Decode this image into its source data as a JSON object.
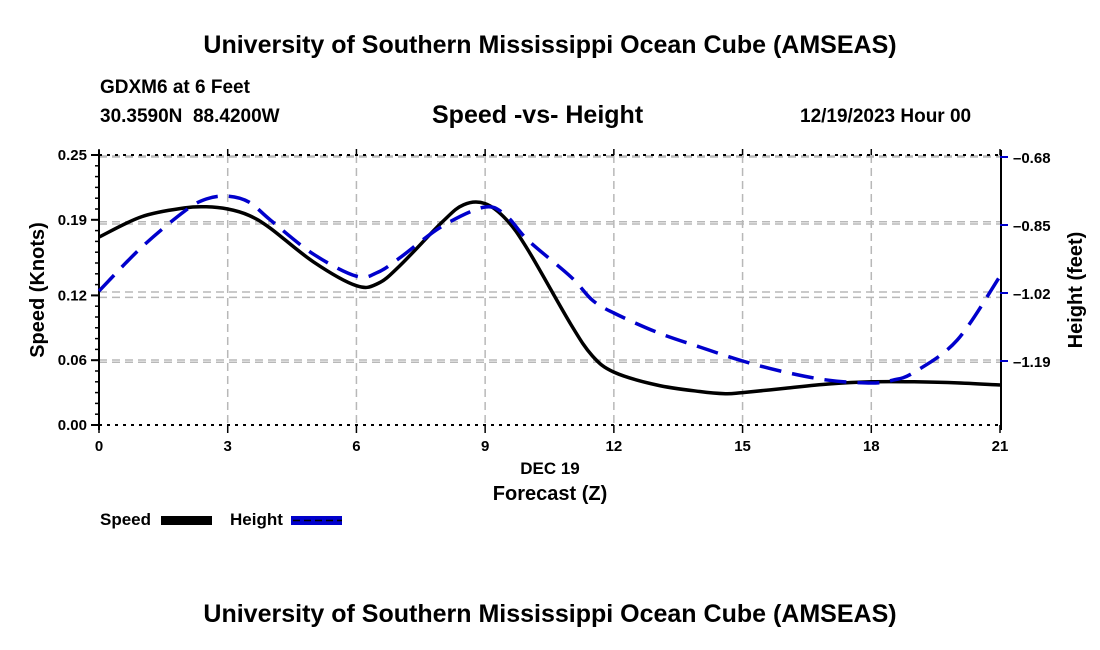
{
  "header": {
    "title": "University of Southern Mississippi Ocean Cube (AMSEAS)",
    "station": "GDXM6 at 6 Feet",
    "coords": "30.3590N  88.4200W",
    "subtitle": "Speed -vs- Height",
    "datetime": "12/19/2023 Hour 00"
  },
  "footer": {
    "title": "University of Southern Mississippi Ocean Cube (AMSEAS)"
  },
  "legend": {
    "items": [
      {
        "label": "Speed",
        "color": "#000000",
        "style": "solid"
      },
      {
        "label": "Height",
        "color": "#0000cc",
        "style": "dashed"
      }
    ],
    "placement": "bottom-left"
  },
  "chart_data": {
    "type": "line",
    "title": "Speed -vs- Height",
    "xlabel": "Forecast (Z)",
    "xlabel_date": "DEC 19",
    "ylabel": "Speed (Knots)",
    "y2label": "Height (feet)",
    "xlim": [
      0,
      21
    ],
    "ylim": [
      0,
      0.25
    ],
    "y2lim": [
      -1.35,
      -0.675
    ],
    "x_ticks": [
      0,
      3,
      6,
      9,
      12,
      15,
      18,
      21
    ],
    "x_tick_labels": [
      "0",
      "3",
      "6",
      "9",
      "12",
      "15",
      "18",
      "21"
    ],
    "y_ticks": [
      0.0,
      0.06,
      0.12,
      0.19,
      0.25
    ],
    "y_tick_labels": [
      "0.00",
      "0.06",
      "0.12",
      "0.19",
      "0.25"
    ],
    "y2_ticks": [
      -0.68,
      -0.85,
      -1.02,
      -1.19
    ],
    "y2_tick_labels": [
      "-0.68",
      "-0.85",
      "-1.02",
      "-1.19"
    ],
    "grid": true,
    "series": [
      {
        "name": "Speed",
        "axis": "left",
        "color": "#000000",
        "style": "solid",
        "x": [
          0,
          1,
          2,
          2.5,
          3,
          3.5,
          4,
          5,
          6,
          6.5,
          7,
          8,
          8.5,
          9,
          9.5,
          10,
          11,
          11.5,
          12,
          13,
          14,
          14.6,
          15,
          16,
          17,
          18,
          19,
          20,
          21
        ],
        "values": [
          0.174,
          0.193,
          0.201,
          0.202,
          0.2,
          0.194,
          0.182,
          0.151,
          0.129,
          0.131,
          0.147,
          0.188,
          0.204,
          0.205,
          0.19,
          0.162,
          0.093,
          0.064,
          0.049,
          0.037,
          0.031,
          0.029,
          0.03,
          0.034,
          0.038,
          0.04,
          0.04,
          0.039,
          0.037
        ]
      },
      {
        "name": "Height",
        "axis": "right",
        "color": "#0000cc",
        "style": "dashed",
        "x": [
          0,
          1,
          2,
          2.5,
          3,
          3.5,
          4,
          5,
          6,
          6.5,
          7,
          8,
          9,
          9.5,
          10,
          11,
          11.5,
          12,
          13,
          14,
          15,
          16,
          17,
          18,
          18.5,
          19,
          20,
          21
        ],
        "values": [
          -1.015,
          -0.905,
          -0.815,
          -0.785,
          -0.778,
          -0.793,
          -0.838,
          -0.923,
          -0.978,
          -0.968,
          -0.933,
          -0.853,
          -0.805,
          -0.828,
          -0.888,
          -0.98,
          -1.038,
          -1.07,
          -1.118,
          -1.155,
          -1.19,
          -1.218,
          -1.238,
          -1.245,
          -1.238,
          -1.218,
          -1.138,
          -0.978
        ]
      }
    ]
  }
}
